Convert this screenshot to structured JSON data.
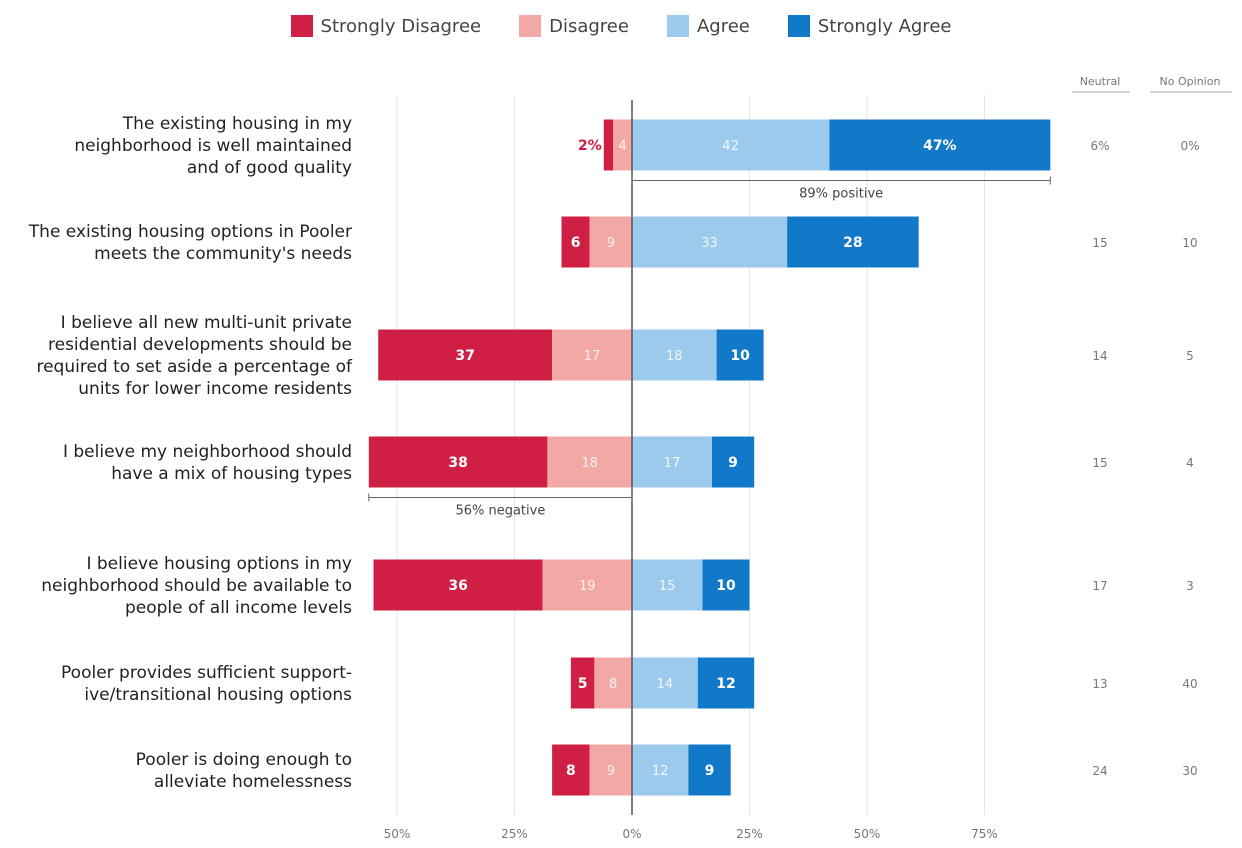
{
  "legend": [
    {
      "label": "Strongly Disagree",
      "color": "#cf1f44"
    },
    {
      "label": "Disagree",
      "color": "#f2a9a6"
    },
    {
      "label": "Agree",
      "color": "#9ccaec"
    },
    {
      "label": "Strongly Agree",
      "color": "#1279c8"
    }
  ],
  "columns": {
    "neutral": "Neutral",
    "no_opinion": "No Opinion"
  },
  "chart_data": {
    "type": "bar",
    "subtype": "diverging-stacked",
    "xlim": [
      -56,
      75
    ],
    "x_ticks": [
      "50%",
      "25%",
      "0%",
      "25%",
      "50%",
      "75%"
    ],
    "series": [
      {
        "name": "Strongly Disagree",
        "values": [
          2,
          6,
          37,
          38,
          36,
          5,
          8
        ]
      },
      {
        "name": "Disagree",
        "values": [
          4,
          9,
          17,
          18,
          19,
          8,
          9
        ]
      },
      {
        "name": "Agree",
        "values": [
          42,
          33,
          18,
          17,
          15,
          14,
          12
        ]
      },
      {
        "name": "Strongly Agree",
        "values": [
          47,
          28,
          10,
          9,
          10,
          12,
          9
        ]
      }
    ],
    "categories": [
      [
        "The existing housing in my",
        "neighborhood is well maintained",
        "and of good quality"
      ],
      [
        "The existing housing options in Pooler",
        "meets the community's needs"
      ],
      [
        "I believe all new multi-unit private",
        "residential developments should be",
        "required to set aside a percentage of",
        "units for lower income residents"
      ],
      [
        "I believe my neighborhood should",
        "have a mix of housing types"
      ],
      [
        "I believe housing options in my",
        "neighborhood should be available to",
        "people of all income levels"
      ],
      [
        "Pooler provides sufficient support-",
        "ive/transitional housing options"
      ],
      [
        "Pooler is doing enough to",
        "alleviate homelessness"
      ]
    ],
    "segment_labels": [
      [
        "2%",
        "4",
        "42",
        "47%"
      ],
      [
        "6",
        "9",
        "33",
        "28"
      ],
      [
        "37",
        "17",
        "18",
        "10"
      ],
      [
        "38",
        "18",
        "17",
        "9"
      ],
      [
        "36",
        "19",
        "15",
        "10"
      ],
      [
        "5",
        "8",
        "14",
        "12"
      ],
      [
        "8",
        "9",
        "12",
        "9"
      ]
    ],
    "neutral": [
      "6%",
      "15",
      "14",
      "15",
      "17",
      "13",
      "24"
    ],
    "no_opinion": [
      "0%",
      "10",
      "5",
      "4",
      "3",
      "40",
      "30"
    ],
    "annotations": [
      {
        "row": 0,
        "side": "positive",
        "text": "89% positive"
      },
      {
        "row": 3,
        "side": "negative",
        "text": "56% negative"
      }
    ]
  }
}
